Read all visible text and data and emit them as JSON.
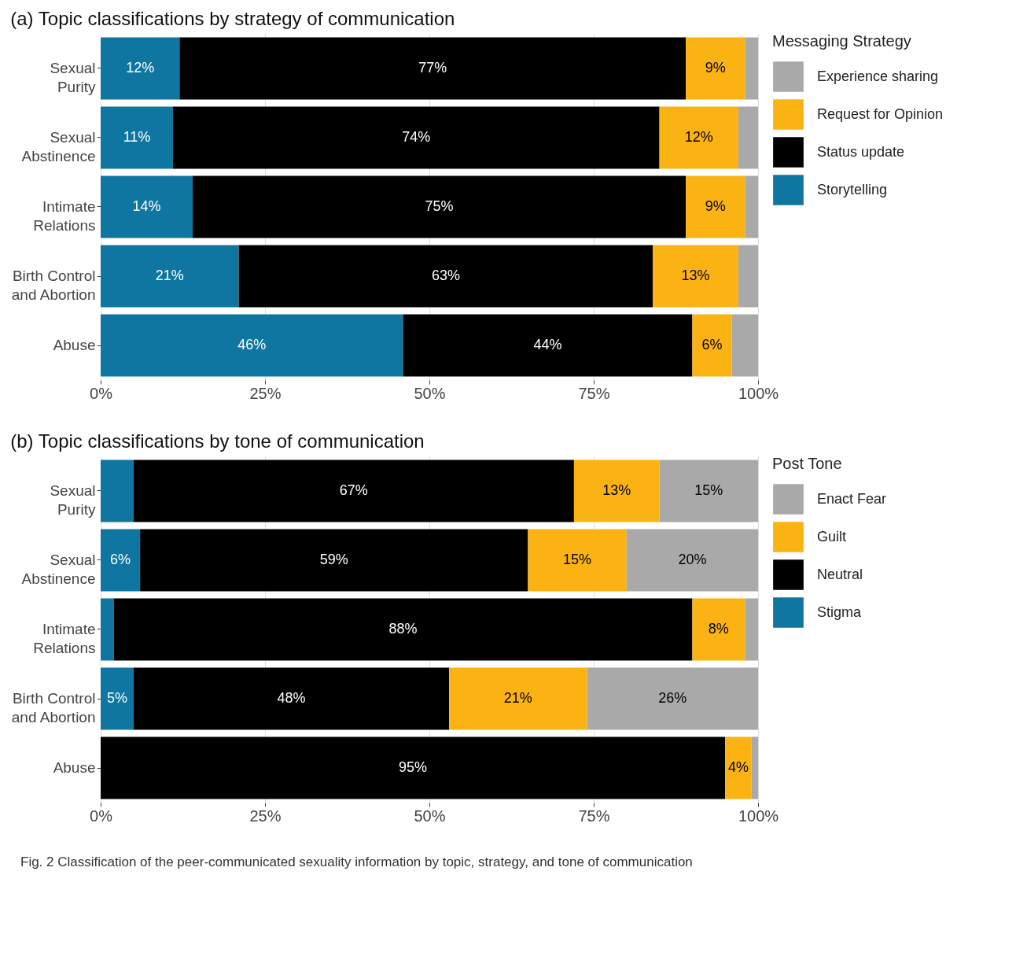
{
  "chart_data": [
    {
      "type": "bar",
      "orientation": "horizontal",
      "stacked": true,
      "title": "(a) Topic classifications by strategy of communication",
      "legend_title": "Messaging Strategy",
      "legend": "right",
      "grid": "x",
      "categories": [
        "Sexual Purity",
        "Sexual Abstinence",
        "Intimate Relations",
        "Birth Control and Abortion",
        "Abuse"
      ],
      "xlim": [
        0,
        100
      ],
      "xticks": [
        {
          "value": 0,
          "label": "0%"
        },
        {
          "value": 25,
          "label": "25%"
        },
        {
          "value": 50,
          "label": "50%"
        },
        {
          "value": 75,
          "label": "75%"
        },
        {
          "value": 100,
          "label": "100%"
        }
      ],
      "series": [
        {
          "name": "Storytelling",
          "color": "#0e76a0",
          "values": [
            12,
            11,
            14,
            21,
            46
          ],
          "value_labels": [
            "12%",
            "11%",
            "14%",
            "21%",
            "46%"
          ]
        },
        {
          "name": "Status update",
          "color": "#000000",
          "values": [
            77,
            74,
            75,
            63,
            44
          ],
          "value_labels": [
            "77%",
            "74%",
            "75%",
            "63%",
            "44%"
          ]
        },
        {
          "name": "Request for Opinion",
          "color": "#fbb313",
          "values": [
            9,
            12,
            9,
            13,
            6
          ],
          "value_labels": [
            "9%",
            "12%",
            "9%",
            "13%",
            "6%"
          ]
        },
        {
          "name": "Experience sharing",
          "color": "#a9a9a9",
          "values": [
            2,
            3,
            2,
            3,
            4
          ],
          "value_labels": [
            null,
            null,
            null,
            null,
            null
          ]
        }
      ]
    },
    {
      "type": "bar",
      "orientation": "horizontal",
      "stacked": true,
      "title": "(b) Topic classifications by tone of communication",
      "legend_title": "Post Tone",
      "legend": "right",
      "grid": "x",
      "categories": [
        "Sexual Purity",
        "Sexual Abstinence",
        "Intimate Relations",
        "Birth Control and Abortion",
        "Abuse"
      ],
      "xlim": [
        0,
        100
      ],
      "xticks": [
        {
          "value": 0,
          "label": "0%"
        },
        {
          "value": 25,
          "label": "25%"
        },
        {
          "value": 50,
          "label": "50%"
        },
        {
          "value": 75,
          "label": "75%"
        },
        {
          "value": 100,
          "label": "100%"
        }
      ],
      "series": [
        {
          "name": "Stigma",
          "color": "#0e76a0",
          "values": [
            5,
            6,
            2,
            5,
            0
          ],
          "value_labels": [
            null,
            "6%",
            null,
            "5%",
            null
          ]
        },
        {
          "name": "Neutral",
          "color": "#000000",
          "values": [
            67,
            59,
            88,
            48,
            95
          ],
          "value_labels": [
            "67%",
            "59%",
            "88%",
            "48%",
            "95%"
          ]
        },
        {
          "name": "Guilt",
          "color": "#fbb313",
          "values": [
            13,
            15,
            8,
            21,
            4
          ],
          "value_labels": [
            "13%",
            "15%",
            "8%",
            "21%",
            "4%"
          ]
        },
        {
          "name": "Enact Fear",
          "color": "#a9a9a9",
          "values": [
            15,
            20,
            2,
            26,
            1
          ],
          "value_labels": [
            "15%",
            "20%",
            null,
            "26%",
            null
          ]
        }
      ],
      "annotations": [
        "Fig. 2 Classification of the peer-communicated sexuality information by topic, strategy, and tone of communication"
      ]
    }
  ]
}
